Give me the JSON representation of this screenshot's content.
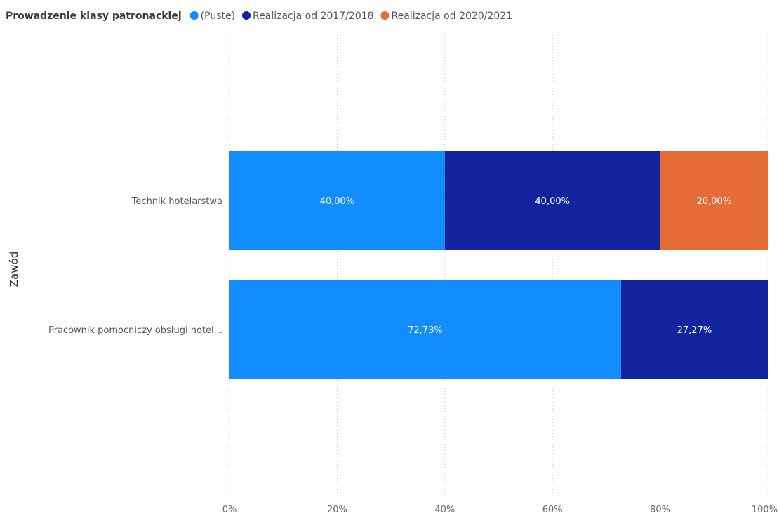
{
  "chart_data": {
    "type": "bar",
    "orientation": "horizontal",
    "stacked": "percent",
    "legend": {
      "title": "Prowadzenie klasy patronackiej",
      "placement": "top-left"
    },
    "ylabel": "Zawód",
    "xlabel": "",
    "categories": [
      "Technik hotelarstwa",
      "Pracownik pomocniczy obsługi hotel..."
    ],
    "series": [
      {
        "name": "(Puste)",
        "color": "#118dff",
        "values": [
          40.0,
          72.73
        ],
        "labels": [
          "40,00%",
          "72,73%"
        ]
      },
      {
        "name": "Realizacja od 2017/2018",
        "color": "#12239e",
        "values": [
          40.0,
          27.27
        ],
        "labels": [
          "40,00%",
          "27,27%"
        ]
      },
      {
        "name": "Realizacja od 2020/2021",
        "color": "#e66c37",
        "values": [
          20.0,
          0
        ],
        "labels": [
          "20,00%",
          ""
        ]
      }
    ],
    "xlim": [
      0,
      100
    ],
    "xticks": [
      {
        "value": 0,
        "label": "0%"
      },
      {
        "value": 20,
        "label": "20%"
      },
      {
        "value": 40,
        "label": "40%"
      },
      {
        "value": 60,
        "label": "60%"
      },
      {
        "value": 80,
        "label": "80%"
      },
      {
        "value": 100,
        "label": "100%"
      }
    ],
    "grid": "vertical-dotted"
  }
}
